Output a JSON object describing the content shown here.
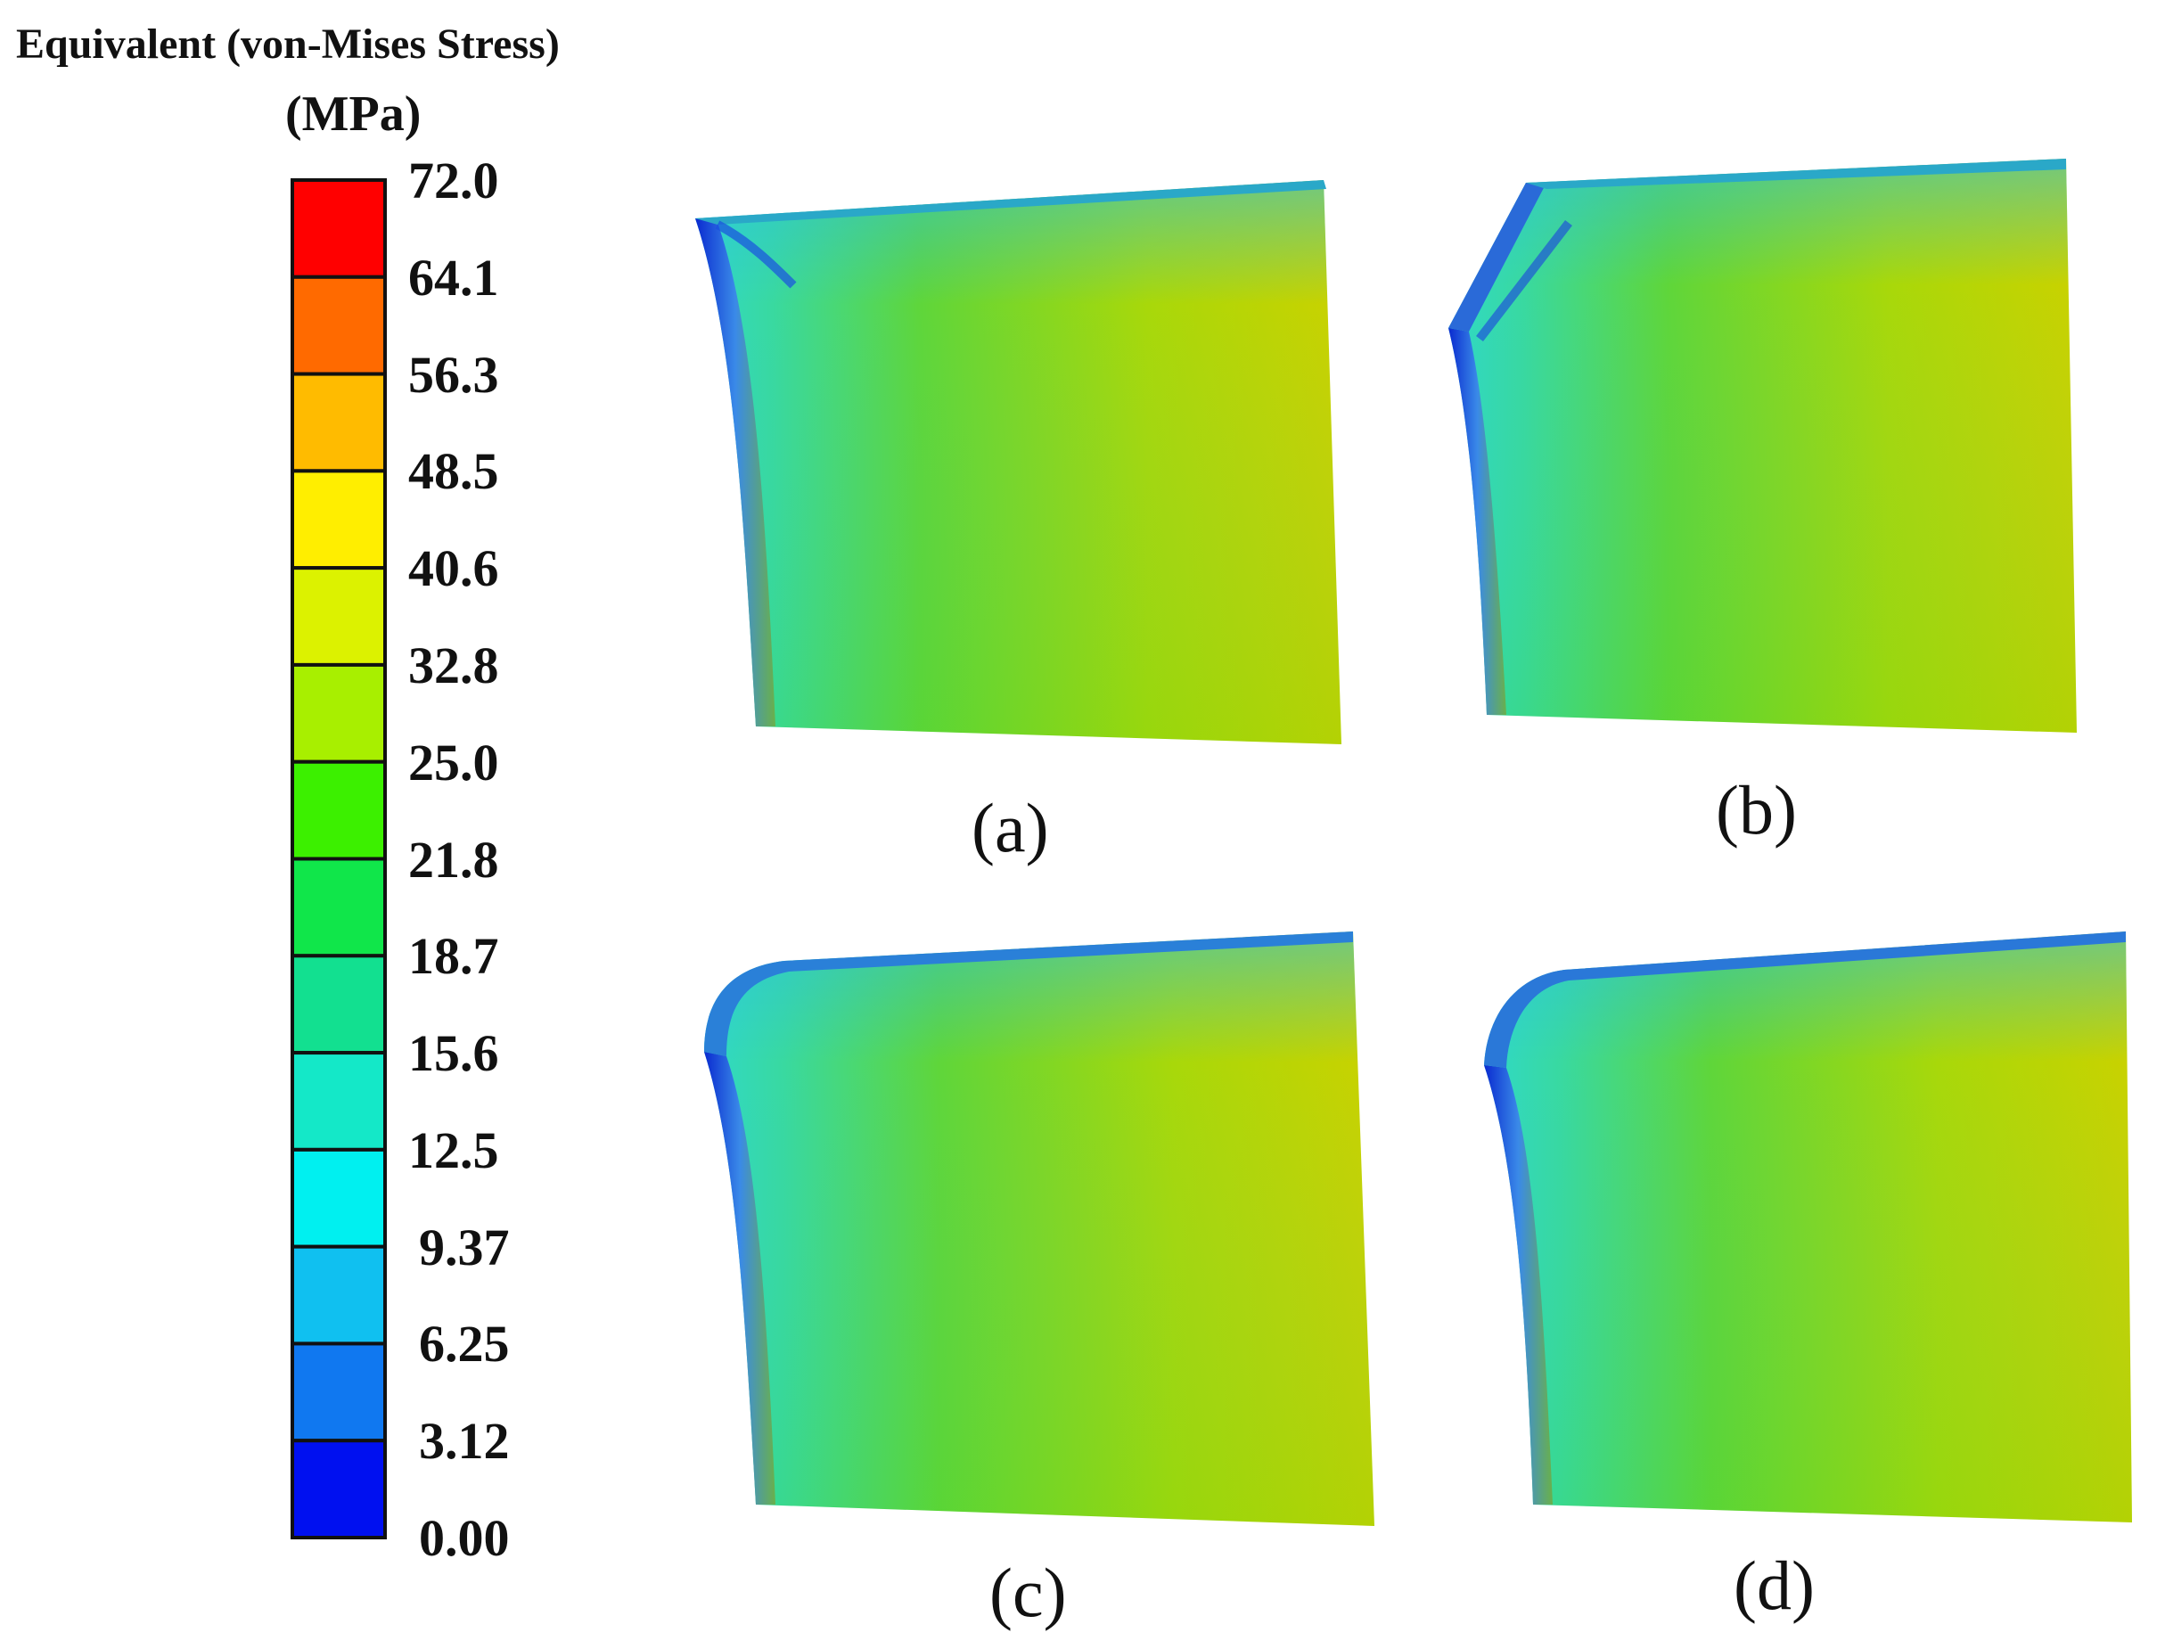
{
  "legend": {
    "title_line1": "Equivalent (von-Mises Stress)",
    "title_line2": "(MPa)",
    "ticks": [
      "72.0",
      "64.1",
      "56.3",
      "48.5",
      "40.6",
      "32.8",
      "25.0",
      "21.8",
      "18.7",
      "15.6",
      "12.5",
      "9.37",
      "6.25",
      "3.12",
      "0.00"
    ],
    "band_colors_top_to_bottom": [
      "#ff0000",
      "#ff6a00",
      "#ffbb00",
      "#ffee00",
      "#dcf200",
      "#a8ef00",
      "#3cf000",
      "#10e64a",
      "#12e090",
      "#14e8c8",
      "#00f0f0",
      "#10c0f0",
      "#1078f0",
      "#0010f0"
    ]
  },
  "panels": [
    {
      "label": "(a)",
      "edge": "curved"
    },
    {
      "label": "(b)",
      "edge": "chamfer"
    },
    {
      "label": "(c)",
      "edge": "rounded"
    },
    {
      "label": "(d)",
      "edge": "rounded-chamfer"
    }
  ],
  "colors": {
    "stress_low": "#1a3fe0",
    "stress_mid_low": "#29c9e6",
    "stress_mid": "#3fd11f",
    "stress_high": "#c7d600"
  }
}
